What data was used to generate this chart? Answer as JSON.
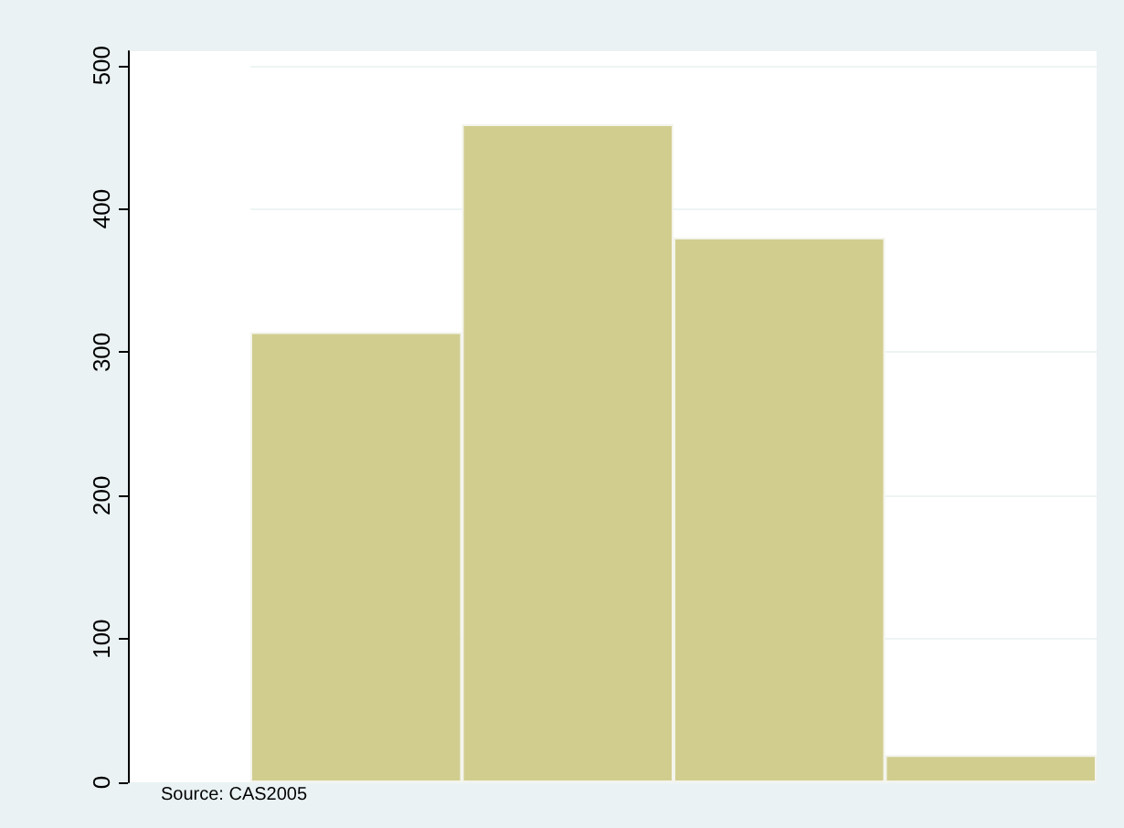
{
  "chart_data": {
    "type": "bar",
    "categories": [
      null,
      null,
      null,
      null
    ],
    "values": [
      314,
      459,
      380,
      19
    ],
    "color": "#d1cd8f",
    "ylim": [
      0,
      510
    ],
    "yticks": [
      0,
      100,
      200,
      300,
      400,
      500
    ],
    "grid": "y",
    "annotations": [
      "Source: CAS2005"
    ]
  }
}
